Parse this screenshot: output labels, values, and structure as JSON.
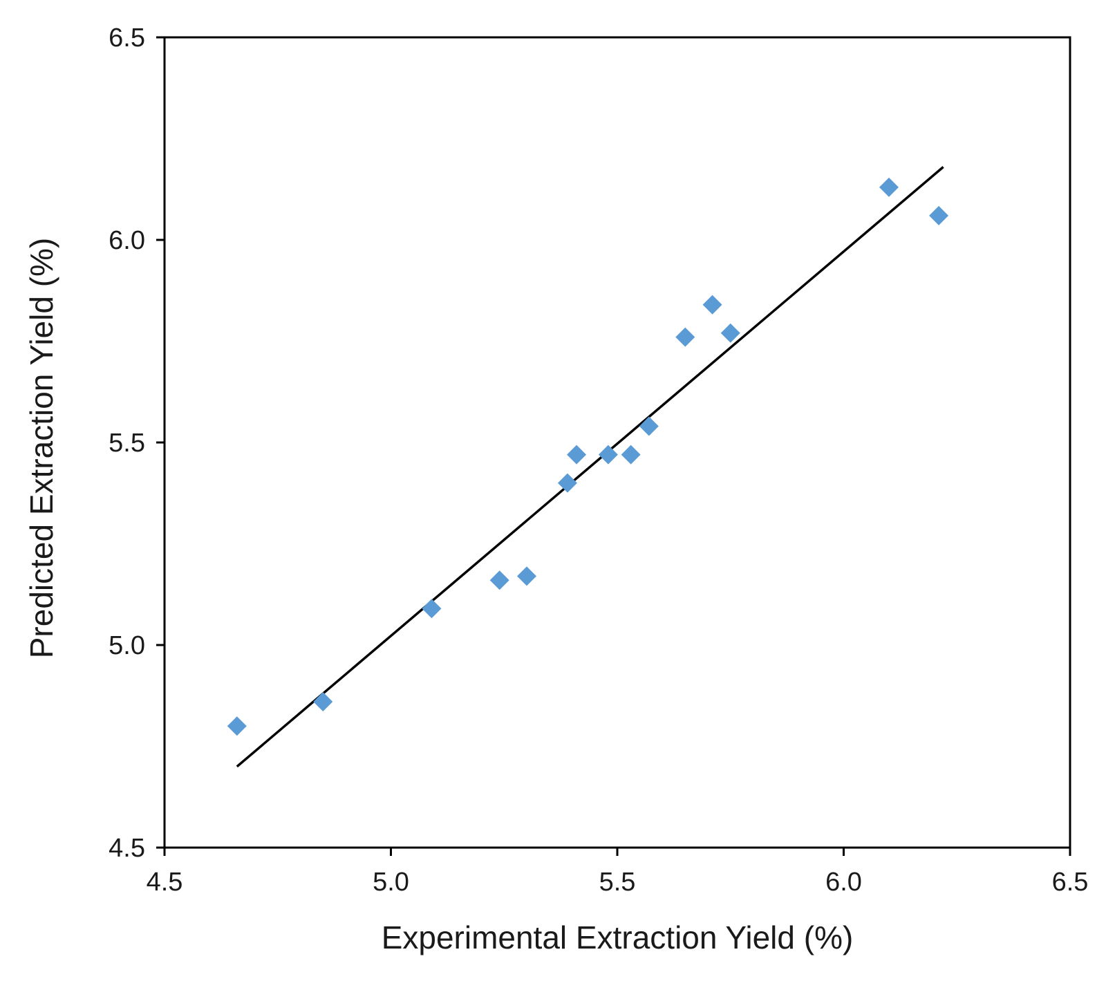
{
  "chart_data": {
    "type": "scatter",
    "title": "",
    "xlabel": "Experimental Extraction Yield (%)",
    "ylabel": "Predicted Extraction Yield (%)",
    "xlim": [
      4.5,
      6.5
    ],
    "ylim": [
      4.5,
      6.5
    ],
    "xticks": [
      "4.5",
      "5.0",
      "5.5",
      "6.0",
      "6.5"
    ],
    "yticks": [
      "4.5",
      "5.0",
      "5.5",
      "6.0",
      "6.5"
    ],
    "grid": false,
    "legend": "none",
    "colors": {
      "marker": "#5b9bd5",
      "line": "#000000",
      "axis": "#000000"
    },
    "series": [
      {
        "name": "Data points",
        "marker": "diamond",
        "points": [
          {
            "x": 4.66,
            "y": 4.8
          },
          {
            "x": 4.85,
            "y": 4.86
          },
          {
            "x": 5.09,
            "y": 5.09
          },
          {
            "x": 5.24,
            "y": 5.16
          },
          {
            "x": 5.3,
            "y": 5.17
          },
          {
            "x": 5.39,
            "y": 5.4
          },
          {
            "x": 5.41,
            "y": 5.47
          },
          {
            "x": 5.48,
            "y": 5.47
          },
          {
            "x": 5.53,
            "y": 5.47
          },
          {
            "x": 5.57,
            "y": 5.54
          },
          {
            "x": 5.65,
            "y": 5.76
          },
          {
            "x": 5.71,
            "y": 5.84
          },
          {
            "x": 5.75,
            "y": 5.77
          },
          {
            "x": 6.1,
            "y": 6.13
          },
          {
            "x": 6.21,
            "y": 6.06
          }
        ]
      }
    ],
    "fit_line": {
      "name": "Linear fit",
      "x": [
        4.66,
        6.22
      ],
      "y": [
        4.7,
        6.18
      ]
    }
  }
}
